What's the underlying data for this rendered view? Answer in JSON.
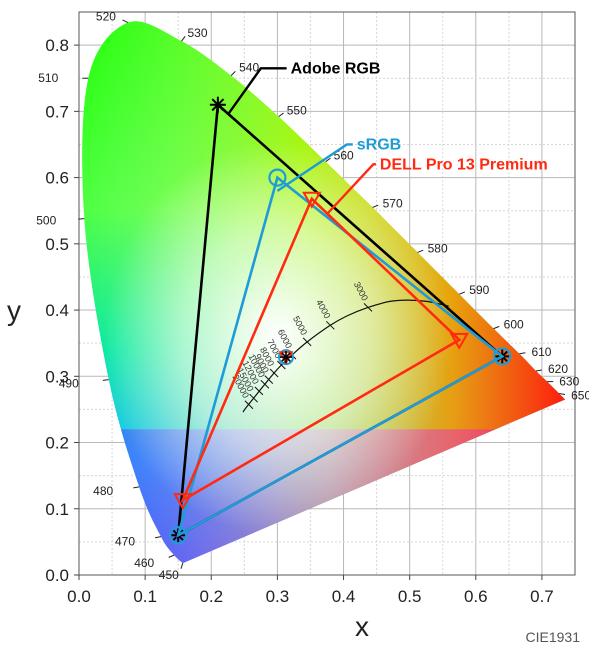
{
  "chart_data": {
    "type": "scatter",
    "subtype": "chromaticity-diagram",
    "footer": "CIE1931",
    "xlabel": "x",
    "ylabel": "y",
    "xlim": [
      0.0,
      0.75
    ],
    "ylim": [
      0.0,
      0.85
    ],
    "grid": true,
    "x_ticks": [
      "0.0",
      "0.1",
      "0.2",
      "0.3",
      "0.4",
      "0.5",
      "0.6",
      "0.7"
    ],
    "y_ticks": [
      "0.0",
      "0.1",
      "0.2",
      "0.3",
      "0.4",
      "0.5",
      "0.6",
      "0.7",
      "0.8"
    ],
    "spectral_locus": [
      {
        "nm": "450",
        "x": 0.157,
        "y": 0.018
      },
      {
        "nm": "460",
        "x": 0.144,
        "y": 0.03
      },
      {
        "nm": "470",
        "x": 0.124,
        "y": 0.058
      },
      {
        "nm": "480",
        "x": 0.091,
        "y": 0.133
      },
      {
        "nm": "490",
        "x": 0.045,
        "y": 0.295
      },
      {
        "nm": "500",
        "x": 0.008,
        "y": 0.538
      },
      {
        "nm": "510",
        "x": 0.014,
        "y": 0.75
      },
      {
        "nm": "520",
        "x": 0.074,
        "y": 0.834
      },
      {
        "nm": "530",
        "x": 0.155,
        "y": 0.806
      },
      {
        "nm": "540",
        "x": 0.23,
        "y": 0.754
      },
      {
        "nm": "550",
        "x": 0.302,
        "y": 0.692
      },
      {
        "nm": "560",
        "x": 0.373,
        "y": 0.624
      },
      {
        "nm": "570",
        "x": 0.444,
        "y": 0.555
      },
      {
        "nm": "580",
        "x": 0.512,
        "y": 0.487
      },
      {
        "nm": "590",
        "x": 0.575,
        "y": 0.424
      },
      {
        "nm": "600",
        "x": 0.627,
        "y": 0.372
      },
      {
        "nm": "610",
        "x": 0.666,
        "y": 0.334
      },
      {
        "nm": "620",
        "x": 0.691,
        "y": 0.308
      },
      {
        "nm": "630",
        "x": 0.708,
        "y": 0.292
      },
      {
        "nm": "650",
        "x": 0.726,
        "y": 0.274
      }
    ],
    "series": [
      {
        "name": "Adobe RGB",
        "color": "#000000",
        "marker": "asterisk",
        "points": [
          {
            "x": 0.64,
            "y": 0.33
          },
          {
            "x": 0.21,
            "y": 0.71
          },
          {
            "x": 0.15,
            "y": 0.06
          }
        ]
      },
      {
        "name": "sRGB",
        "color": "#1f9bd8",
        "marker": "circle",
        "points": [
          {
            "x": 0.64,
            "y": 0.33
          },
          {
            "x": 0.3,
            "y": 0.6
          },
          {
            "x": 0.15,
            "y": 0.06
          }
        ]
      },
      {
        "name": "DELL Pro 13 Premium",
        "color": "#ff2a10",
        "marker": "triangle-down",
        "points": [
          {
            "x": 0.575,
            "y": 0.355
          },
          {
            "x": 0.352,
            "y": 0.568
          },
          {
            "x": 0.157,
            "y": 0.113
          }
        ]
      }
    ],
    "white_point": {
      "x": 0.313,
      "y": 0.329
    },
    "planckian_locus": [
      {
        "cct": "3000",
        "x": 0.437,
        "y": 0.404
      },
      {
        "cct": "4000",
        "x": 0.38,
        "y": 0.377
      },
      {
        "cct": "5000",
        "x": 0.345,
        "y": 0.352
      },
      {
        "cct": "6000",
        "x": 0.322,
        "y": 0.332
      },
      {
        "cct": "7000",
        "x": 0.306,
        "y": 0.317
      },
      {
        "cct": "8000",
        "x": 0.295,
        "y": 0.305
      },
      {
        "cct": "9000",
        "x": 0.287,
        "y": 0.295
      },
      {
        "cct": "10000",
        "x": 0.281,
        "y": 0.288
      },
      {
        "cct": "12000",
        "x": 0.272,
        "y": 0.278
      },
      {
        "cct": "15000",
        "x": 0.264,
        "y": 0.267
      },
      {
        "cct": "20000",
        "x": 0.257,
        "y": 0.257
      }
    ],
    "planckian_curve": [
      [
        0.559,
        0.406
      ],
      [
        0.526,
        0.413
      ],
      [
        0.497,
        0.415
      ],
      [
        0.47,
        0.413
      ],
      [
        0.437,
        0.404
      ],
      [
        0.405,
        0.391
      ],
      [
        0.38,
        0.377
      ],
      [
        0.345,
        0.352
      ],
      [
        0.322,
        0.332
      ],
      [
        0.306,
        0.317
      ],
      [
        0.295,
        0.305
      ],
      [
        0.281,
        0.288
      ],
      [
        0.264,
        0.267
      ],
      [
        0.252,
        0.252
      ],
      [
        0.248,
        0.246
      ]
    ]
  }
}
